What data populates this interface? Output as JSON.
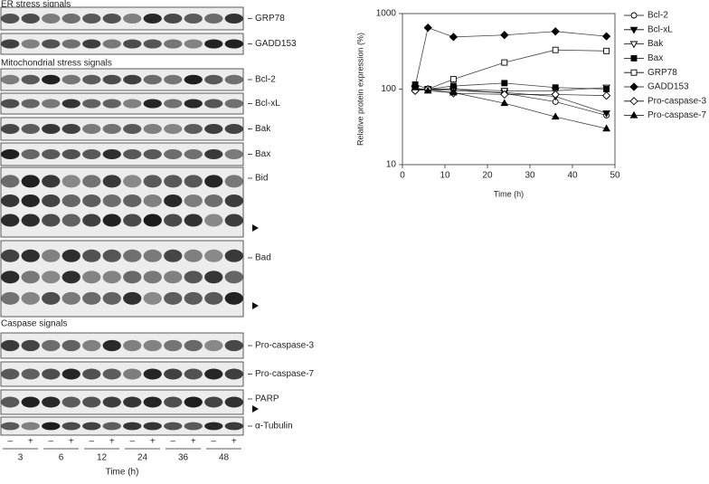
{
  "blots": {
    "sections": [
      {
        "title": "ER stress signals",
        "panels": [
          "GRP78",
          "GADD153"
        ]
      },
      {
        "title": "Mitochondrial stress signals",
        "panels": [
          "Bcl-2",
          "Bcl-xL",
          "Bak",
          "Bax",
          "Bid",
          "Bad"
        ]
      },
      {
        "title": "Caspase signals",
        "panels": [
          "Pro-caspase-3",
          "Pro-caspase-7",
          "PARP",
          "α-Tubulin"
        ]
      }
    ],
    "signs": [
      "–",
      "+",
      "–",
      "+",
      "–",
      "+",
      "–",
      "+",
      "–",
      "+",
      "–",
      "+"
    ],
    "times": [
      "3",
      "6",
      "12",
      "24",
      "36",
      "48"
    ],
    "xlabel": "Time (h)"
  },
  "chart_data": {
    "type": "line",
    "xlabel": "Time (h)",
    "ylabel": "Relative protein expression (%)",
    "x": [
      3,
      6,
      12,
      24,
      36,
      48
    ],
    "xlim": [
      0,
      50
    ],
    "xticks": [
      0,
      10,
      20,
      30,
      40,
      50
    ],
    "ylim": [
      10,
      1000
    ],
    "yticks": [
      10,
      100,
      1000
    ],
    "log_y": true,
    "legend": "right",
    "series": [
      {
        "name": "Bcl-2",
        "color": "#000000",
        "marker": "circle",
        "filled": false,
        "values": [
          95,
          100,
          100,
          88,
          68,
          45
        ]
      },
      {
        "name": "Bcl-xL",
        "color": "#000000",
        "marker": "triangle-down",
        "filled": true,
        "values": [
          100,
          100,
          95,
          90,
          80,
          48
        ]
      },
      {
        "name": "Bak",
        "color": "#000000",
        "marker": "triangle-down",
        "filled": false,
        "values": [
          100,
          100,
          100,
          95,
          95,
          105
        ]
      },
      {
        "name": "Bax",
        "color": "#000000",
        "marker": "square",
        "filled": true,
        "values": [
          115,
          100,
          110,
          120,
          105,
          100
        ]
      },
      {
        "name": "GRP78",
        "color": "#000000",
        "marker": "square",
        "filled": false,
        "values": [
          100,
          100,
          135,
          225,
          330,
          320
        ]
      },
      {
        "name": "GADD153",
        "color": "#000000",
        "marker": "diamond",
        "filled": true,
        "values": [
          110,
          650,
          490,
          520,
          580,
          500
        ]
      },
      {
        "name": "Pro-caspase-3",
        "color": "#000000",
        "marker": "diamond",
        "filled": false,
        "values": [
          95,
          100,
          88,
          85,
          85,
          82
        ]
      },
      {
        "name": "Pro-caspase-7",
        "color": "#000000",
        "marker": "triangle-up",
        "filled": true,
        "values": [
          105,
          95,
          90,
          65,
          43,
          30
        ]
      }
    ]
  }
}
